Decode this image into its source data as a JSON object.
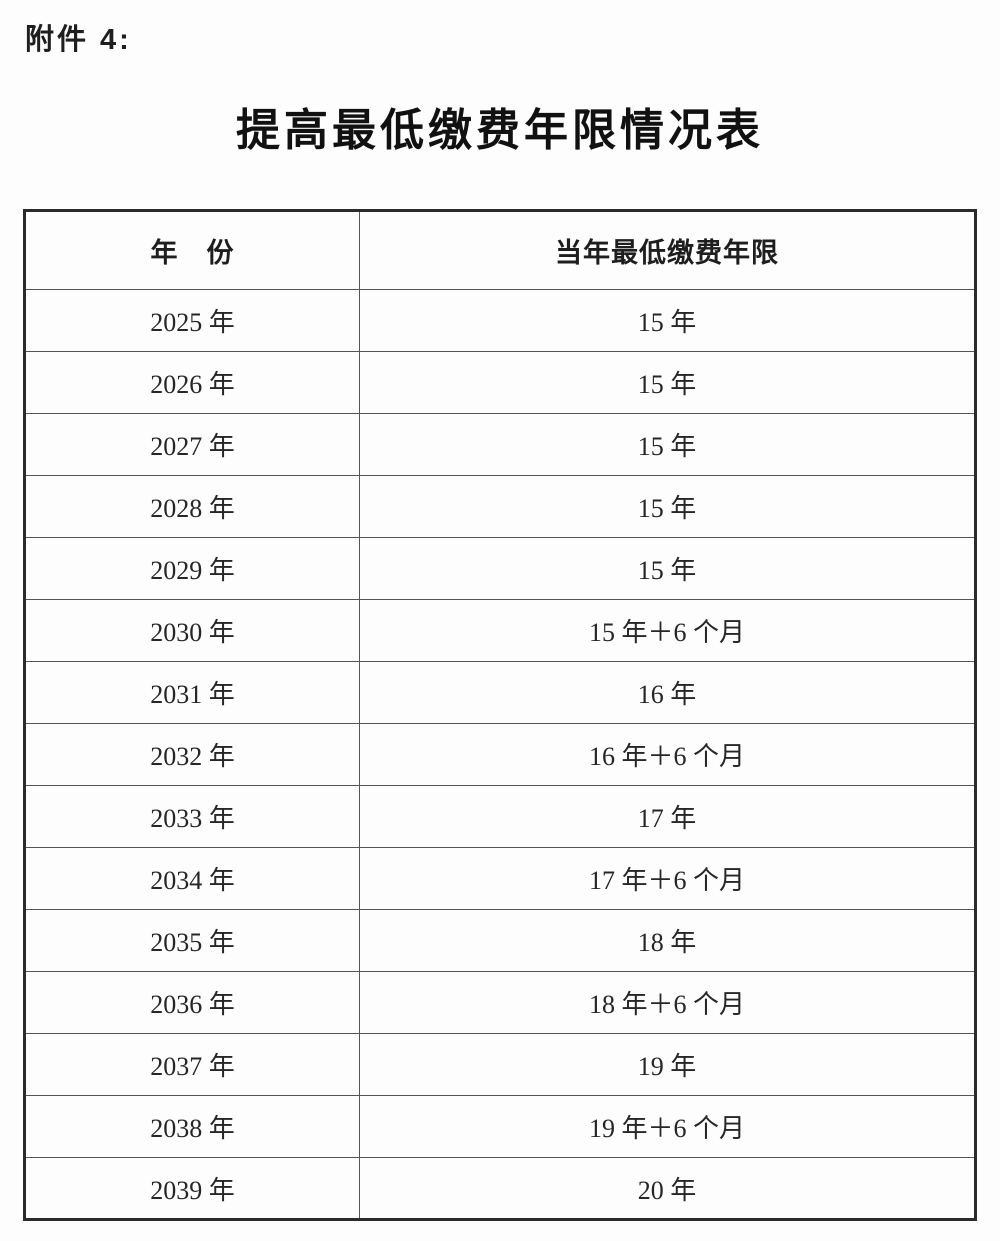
{
  "attachment_label": "附件 4:",
  "title": "提高最低缴费年限情况表",
  "table": {
    "headers": [
      "年　份",
      "当年最低缴费年限"
    ],
    "rows": [
      {
        "year": "2025 年",
        "min_years": "15 年"
      },
      {
        "year": "2026 年",
        "min_years": "15 年"
      },
      {
        "year": "2027 年",
        "min_years": "15 年"
      },
      {
        "year": "2028 年",
        "min_years": "15 年"
      },
      {
        "year": "2029 年",
        "min_years": "15 年"
      },
      {
        "year": "2030 年",
        "min_years": "15 年＋6 个月"
      },
      {
        "year": "2031 年",
        "min_years": "16 年"
      },
      {
        "year": "2032 年",
        "min_years": "16 年＋6 个月"
      },
      {
        "year": "2033 年",
        "min_years": "17 年"
      },
      {
        "year": "2034 年",
        "min_years": "17 年＋6 个月"
      },
      {
        "year": "2035 年",
        "min_years": "18 年"
      },
      {
        "year": "2036 年",
        "min_years": "18 年＋6 个月"
      },
      {
        "year": "2037 年",
        "min_years": "19 年"
      },
      {
        "year": "2038 年",
        "min_years": "19 年＋6 个月"
      },
      {
        "year": "2039 年",
        "min_years": "20 年"
      }
    ]
  },
  "colors": {
    "background": "#fdfdfd",
    "text": "#262626",
    "border_outer": "#2b2b2b",
    "border_inner": "#555555"
  }
}
